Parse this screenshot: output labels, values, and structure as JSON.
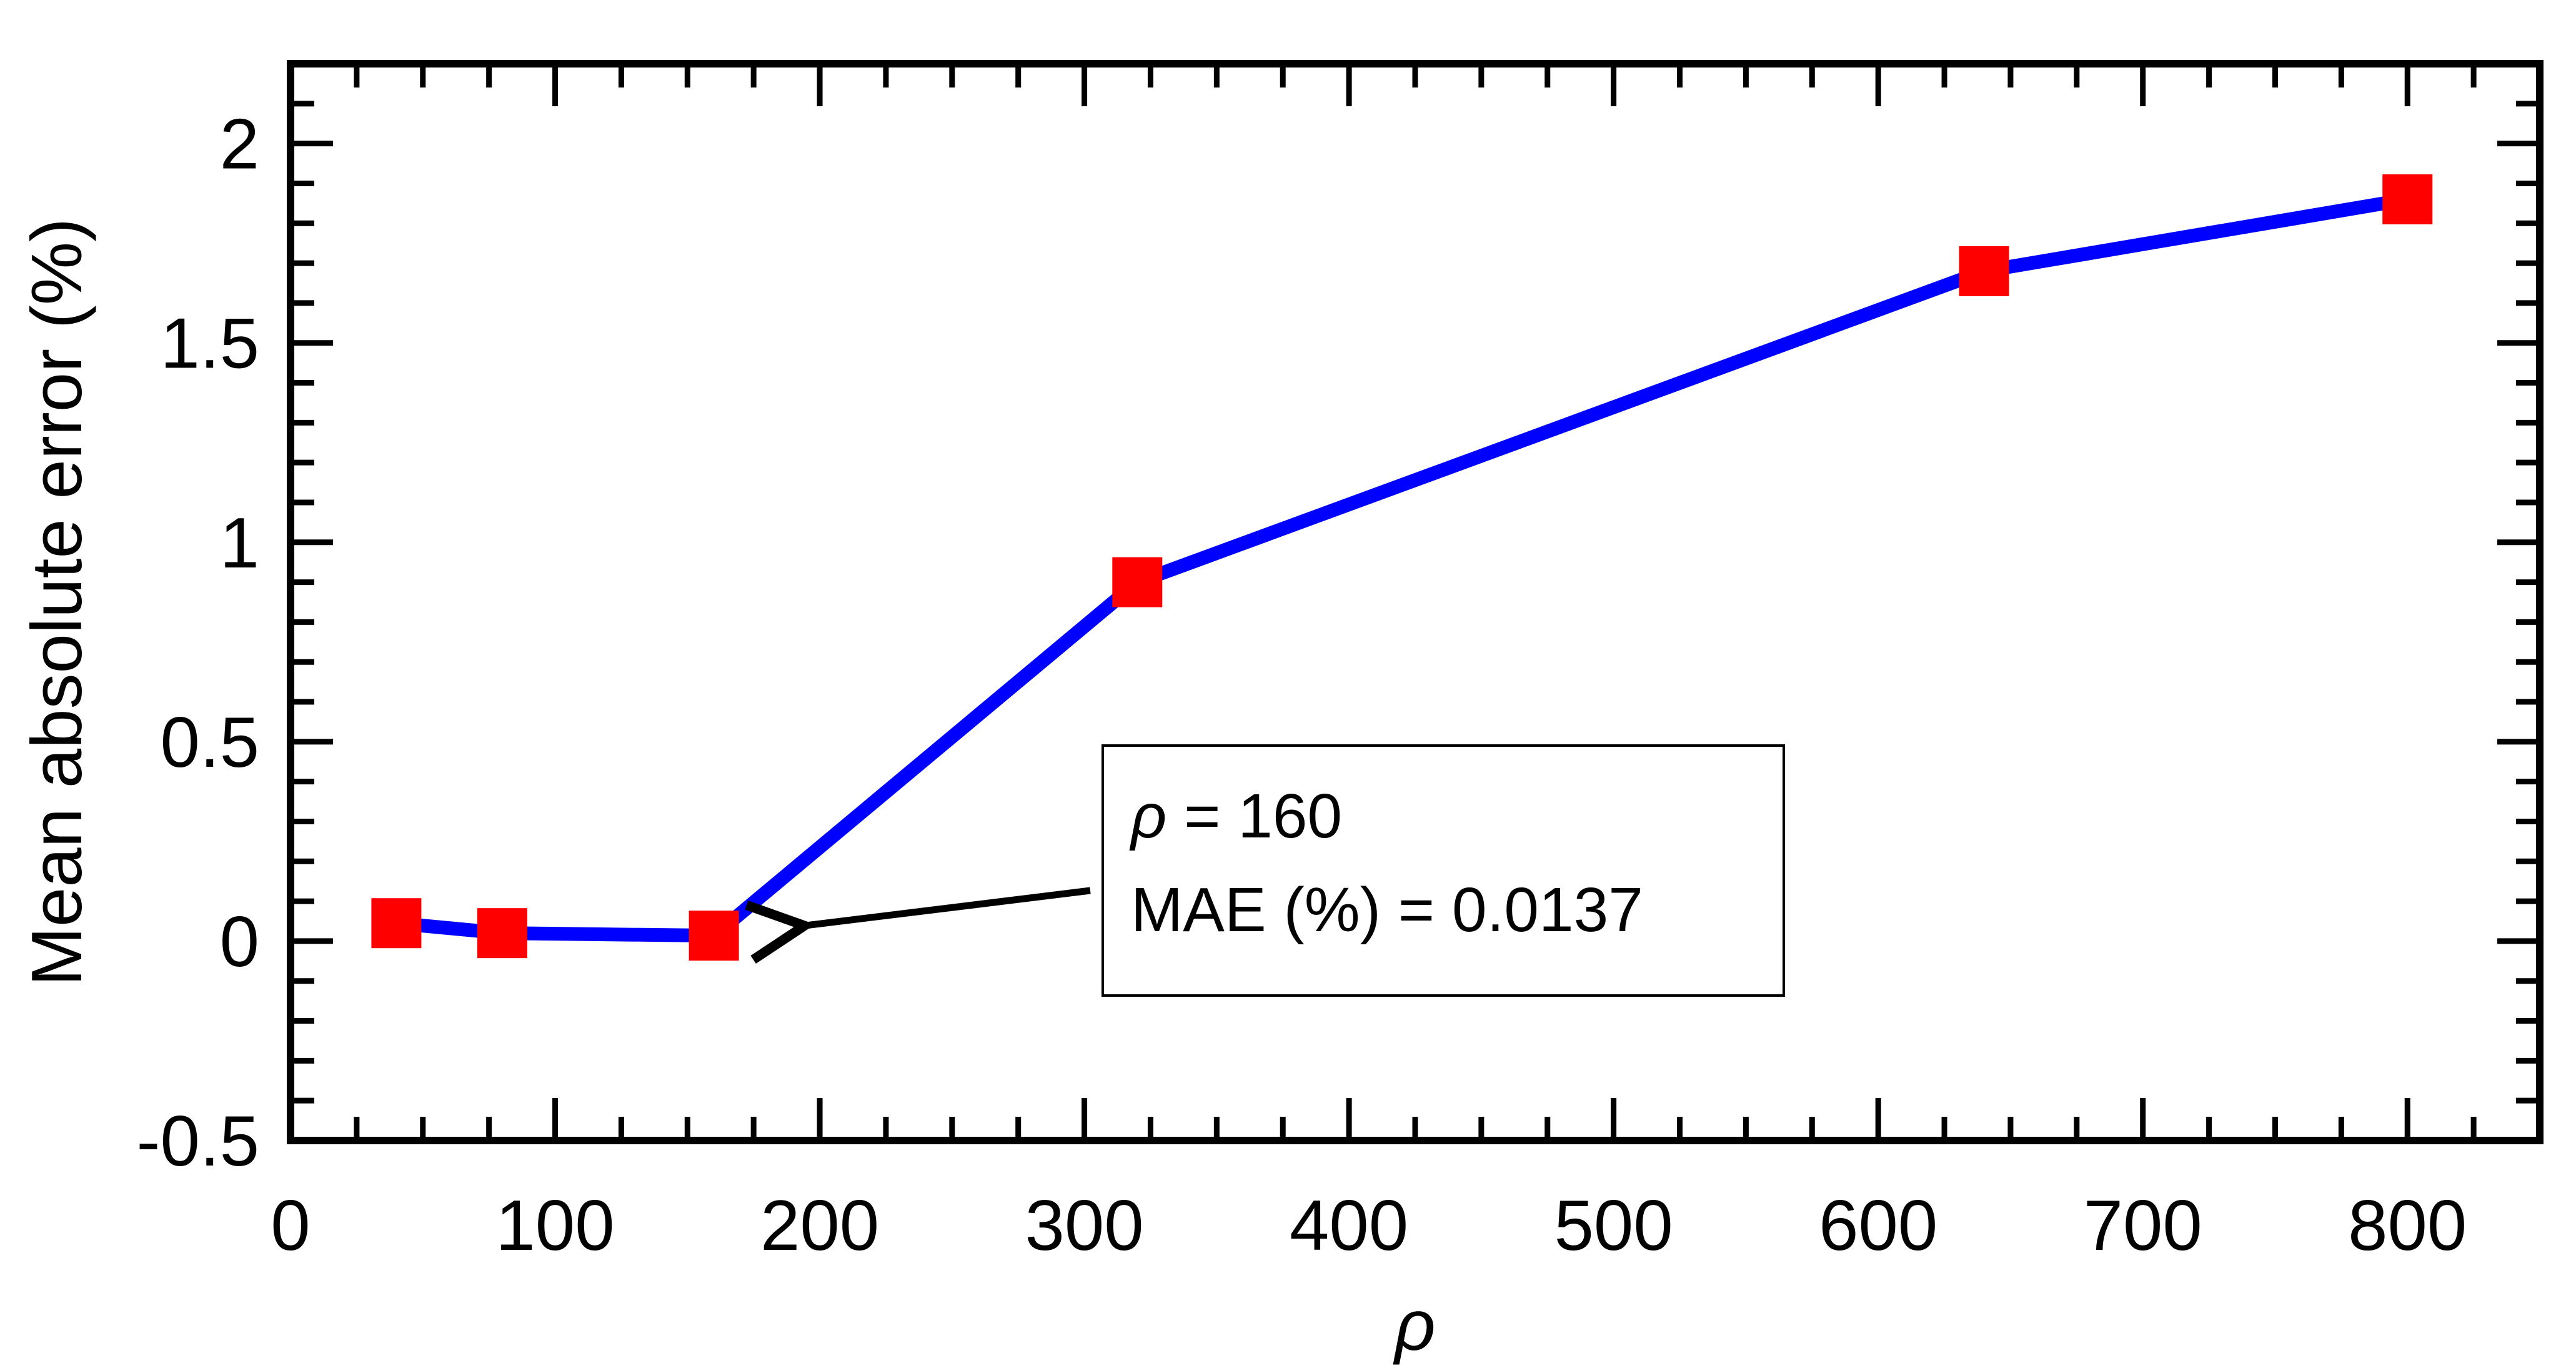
{
  "chart_data": {
    "type": "line",
    "title": "",
    "xlabel": "ρ",
    "ylabel": "Mean absolute error (%)",
    "xlim": [
      0,
      850
    ],
    "ylim": [
      -0.5,
      2.2
    ],
    "xticks": [
      0,
      100,
      200,
      300,
      400,
      500,
      600,
      700,
      800
    ],
    "xtick_labels": [
      "0",
      "100",
      "200",
      "300",
      "400",
      "500",
      "600",
      "700",
      "800"
    ],
    "yticks": [
      -0.5,
      0,
      0.5,
      1,
      1.5,
      2
    ],
    "ytick_labels": [
      "-0.5",
      "0",
      "0.5",
      "1",
      "1.5",
      "2"
    ],
    "grid": false,
    "series": [
      {
        "name": "MAE",
        "line_color": "#0000ff",
        "marker": "square",
        "marker_color": "#ff0000",
        "x": [
          40,
          80,
          160,
          320,
          640,
          800
        ],
        "y": [
          0.045,
          0.02,
          0.0137,
          0.9,
          1.68,
          1.86
        ]
      }
    ],
    "annotation": {
      "line1_symbol": "ρ",
      "line1_rest": " = 160",
      "line2": "MAE (%) = 0.0137",
      "target_x": 160,
      "target_y": 0.0137
    }
  }
}
